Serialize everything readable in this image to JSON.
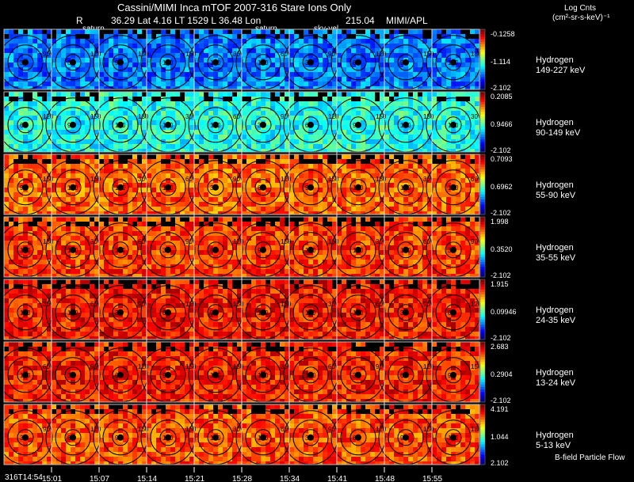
{
  "header": {
    "title": "Cassini/MIMI Inca mTOF  2007-316   Stare    Ions Only",
    "r_label": "R",
    "position": "36.29 Lat 4.16 LT 1529 L       36.48 Lon",
    "orbit_value": "215.04",
    "credit": "MIMI/APL",
    "legend_title": "Log Cnts",
    "legend_units": "(cm²-sr-s-keV)⁻¹",
    "tags": [
      "saturn",
      "saturn",
      "sky-vel"
    ]
  },
  "footer": {
    "bfield_label": "B-field Particle Flow",
    "start_time": "316T14:54",
    "time_ticks": [
      "15:01",
      "15:07",
      "15:14",
      "15:21",
      "15:28",
      "15:34",
      "15:41",
      "15:48",
      "15:55"
    ]
  },
  "chart_data": {
    "type": "heatmap",
    "description_units": "Log Cnts (cm²-sr-s-keV)⁻¹",
    "contour_labels": [
      "30",
      "60",
      "90",
      "120",
      "150",
      "180"
    ],
    "columns": 10,
    "rows": [
      {
        "species": "Hydrogen",
        "energy": "149-227 keV",
        "cmax": "-0.1258",
        "cmid": "-1.114",
        "cmin": "-2.102",
        "intensity": 0.25
      },
      {
        "species": "Hydrogen",
        "energy": "90-149 keV",
        "cmax": "0.2085",
        "cmid": "0.9466",
        "cmin": "-2.102",
        "intensity": 0.4
      },
      {
        "species": "Hydrogen",
        "energy": "55-90 keV",
        "cmax": "0.7093",
        "cmid": "0.6962",
        "cmin": "-2.102",
        "intensity": 0.78
      },
      {
        "species": "Hydrogen",
        "energy": "35-55 keV",
        "cmax": "1.998",
        "cmid": "0.3520",
        "cmin": "-2.102",
        "intensity": 0.82
      },
      {
        "species": "Hydrogen",
        "energy": "24-35 keV",
        "cmax": "1.915",
        "cmid": "0.09946",
        "cmin": "-2.102",
        "intensity": 0.86
      },
      {
        "species": "Hydrogen",
        "energy": "13-24 keV",
        "cmax": "2.683",
        "cmid": "0.2904",
        "cmin": "-2.102",
        "intensity": 0.85
      },
      {
        "species": "Hydrogen",
        "energy": "5-13 keV",
        "cmax": "4.191",
        "cmid": "1.044",
        "cmin": "2.102",
        "intensity": 0.8
      }
    ]
  }
}
